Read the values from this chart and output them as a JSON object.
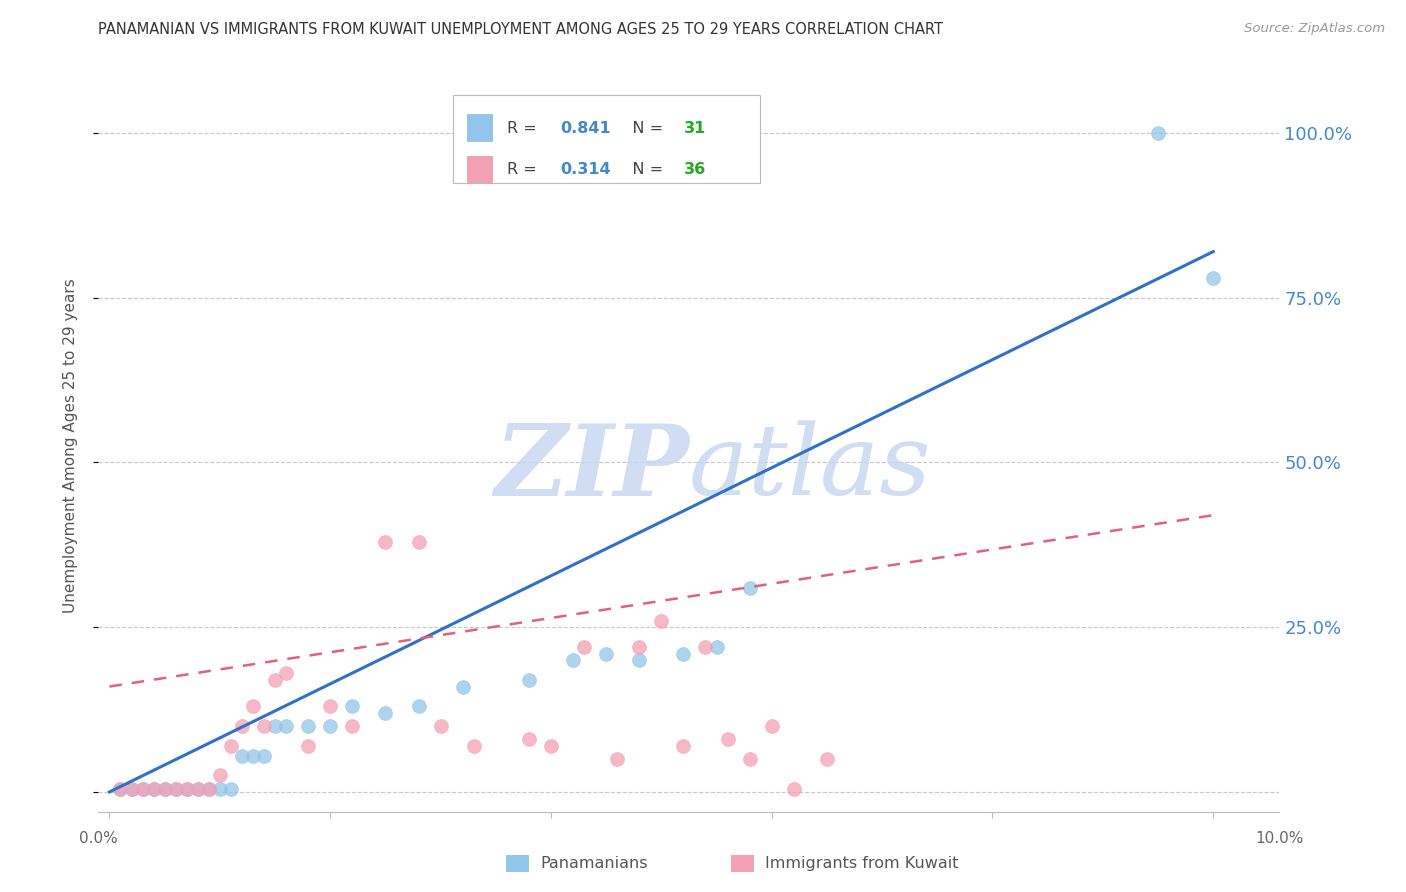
{
  "title": "PANAMANIAN VS IMMIGRANTS FROM KUWAIT UNEMPLOYMENT AMONG AGES 25 TO 29 YEARS CORRELATION CHART",
  "source": "Source: ZipAtlas.com",
  "ylabel": "Unemployment Among Ages 25 to 29 years",
  "y_ticks": [
    0.0,
    0.25,
    0.5,
    0.75,
    1.0
  ],
  "y_tick_labels": [
    "",
    "25.0%",
    "50.0%",
    "75.0%",
    "100.0%"
  ],
  "legend1_r": "0.841",
  "legend1_n": "31",
  "legend2_r": "0.314",
  "legend2_n": "36",
  "blue_color": "#92C5E8",
  "pink_color": "#F4A0B5",
  "blue_line_color": "#3070C8",
  "pink_line_color": "#E06080",
  "right_label_color": "#4488CC",
  "watermark_color": "#C8D8F0",
  "blue_scatter_x": [
    0.001,
    0.002,
    0.003,
    0.004,
    0.005,
    0.006,
    0.007,
    0.008,
    0.009,
    0.01,
    0.011,
    0.012,
    0.013,
    0.014,
    0.015,
    0.016,
    0.018,
    0.02,
    0.022,
    0.025,
    0.028,
    0.032,
    0.038,
    0.042,
    0.045,
    0.048,
    0.052,
    0.055,
    0.058,
    0.095,
    0.1
  ],
  "blue_scatter_y": [
    0.005,
    0.005,
    0.005,
    0.005,
    0.005,
    0.005,
    0.005,
    0.005,
    0.005,
    0.005,
    0.005,
    0.055,
    0.055,
    0.055,
    0.1,
    0.1,
    0.1,
    0.1,
    0.13,
    0.12,
    0.13,
    0.16,
    0.17,
    0.2,
    0.21,
    0.2,
    0.21,
    0.22,
    0.31,
    1.0,
    0.78
  ],
  "pink_scatter_x": [
    0.001,
    0.002,
    0.003,
    0.004,
    0.005,
    0.006,
    0.007,
    0.008,
    0.009,
    0.01,
    0.011,
    0.012,
    0.013,
    0.014,
    0.015,
    0.016,
    0.018,
    0.02,
    0.022,
    0.025,
    0.028,
    0.03,
    0.033,
    0.038,
    0.04,
    0.043,
    0.046,
    0.048,
    0.05,
    0.052,
    0.054,
    0.056,
    0.058,
    0.06,
    0.062,
    0.065
  ],
  "pink_scatter_y": [
    0.005,
    0.005,
    0.005,
    0.005,
    0.005,
    0.005,
    0.005,
    0.005,
    0.005,
    0.025,
    0.07,
    0.1,
    0.13,
    0.1,
    0.17,
    0.18,
    0.07,
    0.13,
    0.1,
    0.38,
    0.38,
    0.1,
    0.07,
    0.08,
    0.07,
    0.22,
    0.05,
    0.22,
    0.26,
    0.07,
    0.22,
    0.08,
    0.05,
    0.1,
    0.005,
    0.05
  ],
  "blue_line_x": [
    0.0,
    0.1
  ],
  "blue_line_y": [
    0.0,
    0.82
  ],
  "pink_line_x": [
    0.0,
    0.1
  ],
  "pink_line_y": [
    0.16,
    0.42
  ],
  "xlim": [
    -0.001,
    0.106
  ],
  "ylim": [
    -0.03,
    1.08
  ],
  "x_ticks": [
    0.0,
    0.02,
    0.04,
    0.06,
    0.08,
    0.1
  ]
}
